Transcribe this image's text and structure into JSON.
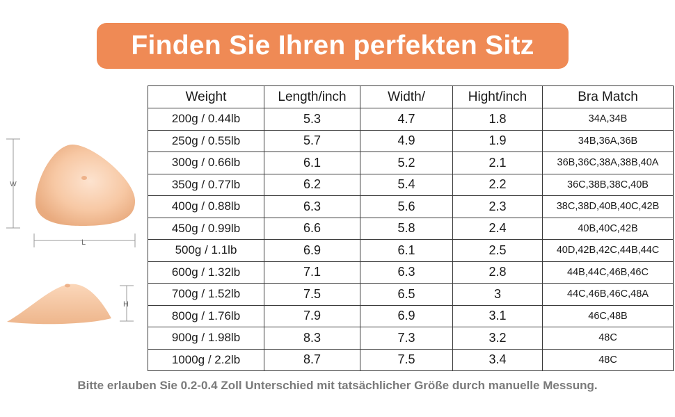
{
  "title": "Finden Sie Ihren perfekten Sitz",
  "colors": {
    "banner": "#ef8a55",
    "note": "#7a7a7a",
    "skin_light": "#fad8bf",
    "skin_dark": "#e9ab7f"
  },
  "table": {
    "headers": [
      "Weight",
      "Length/inch",
      "Width/",
      "Hight/inch",
      "Bra Match"
    ],
    "rows": [
      [
        "200g / 0.44lb",
        "5.3",
        "4.7",
        "1.8",
        "34A,34B"
      ],
      [
        "250g / 0.55lb",
        "5.7",
        "4.9",
        "1.9",
        "34B,36A,36B"
      ],
      [
        "300g / 0.66lb",
        "6.1",
        "5.2",
        "2.1",
        "36B,36C,38A,38B,40A"
      ],
      [
        "350g / 0.77lb",
        "6.2",
        "5.4",
        "2.2",
        "36C,38B,38C,40B"
      ],
      [
        "400g / 0.88lb",
        "6.3",
        "5.6",
        "2.3",
        "38C,38D,40B,40C,42B"
      ],
      [
        "450g / 0.99lb",
        "6.6",
        "5.8",
        "2.4",
        "40B,40C,42B"
      ],
      [
        "500g / 1.1lb",
        "6.9",
        "6.1",
        "2.5",
        "40D,42B,42C,44B,44C"
      ],
      [
        "600g / 1.32lb",
        "7.1",
        "6.3",
        "2.8",
        "44B,44C,46B,46C"
      ],
      [
        "700g / 1.52lb",
        "7.5",
        "6.5",
        "3",
        "44C,46B,46C,48A"
      ],
      [
        "800g / 1.76lb",
        "7.9",
        "6.9",
        "3.1",
        "46C,48B"
      ],
      [
        "900g / 1.98lb",
        "8.3",
        "7.3",
        "3.2",
        "48C"
      ],
      [
        "1000g / 2.2lb",
        "8.7",
        "7.5",
        "3.4",
        "48C"
      ]
    ]
  },
  "diagram": {
    "width_label": "W",
    "length_label": "L",
    "height_label": "H"
  },
  "note": "Bitte erlauben Sie 0.2-0.4 Zoll Unterschied mit tatsächlicher Größe durch manuelle Messung."
}
